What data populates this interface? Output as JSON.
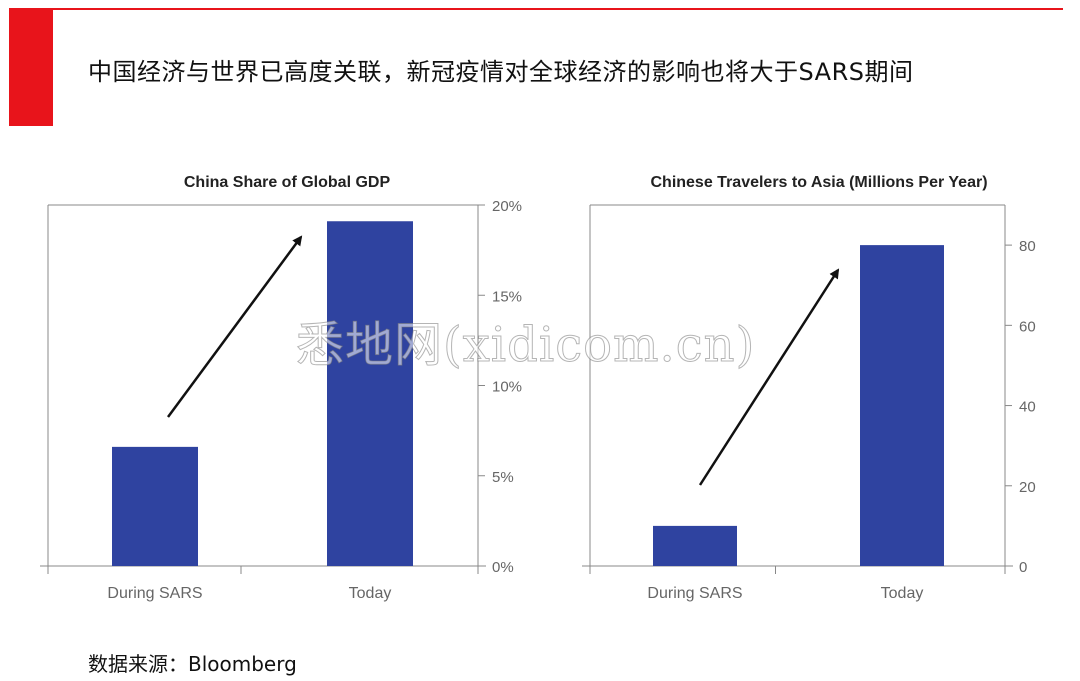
{
  "header": {
    "title": "中国经济与世界已高度关联，新冠疫情对全球经济的影响也将大于SARS期间",
    "accent_color": "#e8141b"
  },
  "watermark": {
    "text": "悉地网(xidicom.cn)"
  },
  "source": {
    "text": "数据来源：Bloomberg"
  },
  "chart_data": [
    {
      "type": "bar",
      "title": "China Share of Global GDP",
      "categories": [
        "During SARS",
        "Today"
      ],
      "values": [
        6.6,
        19.1
      ],
      "ylim": [
        0,
        20
      ],
      "yticks": [
        0,
        5,
        10,
        15,
        20
      ],
      "ytick_labels": [
        "0%",
        "5%",
        "10%",
        "15%",
        "20%"
      ],
      "axis_side": "right",
      "bar_color": "#2f43a0",
      "annotation": "upward-arrow"
    },
    {
      "type": "bar",
      "title": "Chinese Travelers to Asia (Millions Per Year)",
      "categories": [
        "During SARS",
        "Today"
      ],
      "values": [
        10,
        80
      ],
      "ylim": [
        0,
        90
      ],
      "yticks": [
        0,
        20,
        40,
        60,
        80
      ],
      "ytick_labels": [
        "0",
        "20",
        "40",
        "60",
        "80"
      ],
      "axis_side": "right",
      "bar_color": "#2f43a0",
      "annotation": "upward-arrow"
    }
  ]
}
